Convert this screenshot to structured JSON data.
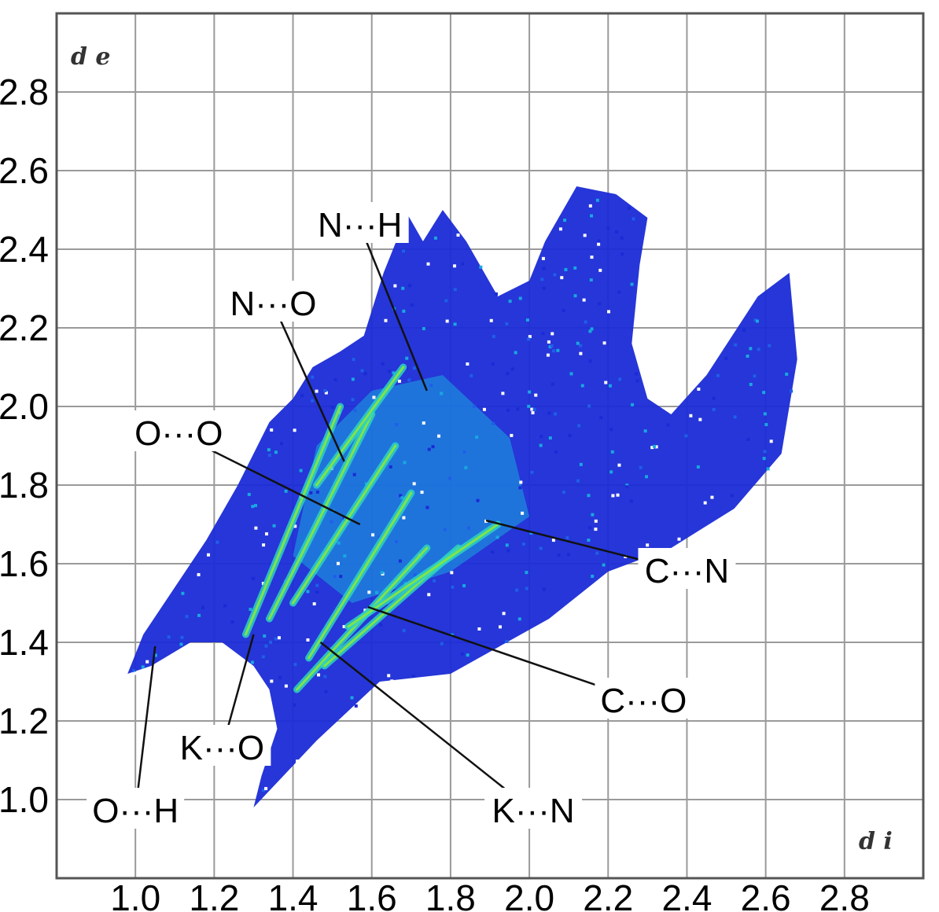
{
  "chart_data": {
    "type": "scatter",
    "title": "",
    "xlabel": "d i",
    "ylabel": "d e",
    "xlim": [
      0.8,
      3.0
    ],
    "ylim": [
      0.8,
      3.0
    ],
    "grid": true,
    "x_ticks": [
      "1.0",
      "1.2",
      "1.4",
      "1.6",
      "1.8",
      "2.0",
      "2.2",
      "2.4",
      "2.6",
      "2.8"
    ],
    "y_ticks": [
      "1.0",
      "1.2",
      "1.4",
      "1.6",
      "1.8",
      "2.0",
      "2.2",
      "2.4",
      "2.6",
      "2.8"
    ],
    "colormap": [
      "#1a2bd6",
      "#1f5fe8",
      "#19a7e0",
      "#2fd3c0",
      "#7fe44a"
    ],
    "point_color": "#1a2bd6",
    "fingerprint_outline": [
      [
        1.3,
        0.98
      ],
      [
        1.46,
        1.15
      ],
      [
        1.62,
        1.3
      ],
      [
        1.8,
        1.32
      ],
      [
        2.05,
        1.46
      ],
      [
        2.2,
        1.58
      ],
      [
        2.36,
        1.64
      ],
      [
        2.52,
        1.74
      ],
      [
        2.64,
        1.88
      ],
      [
        2.68,
        2.12
      ],
      [
        2.66,
        2.34
      ],
      [
        2.58,
        2.28
      ],
      [
        2.45,
        2.08
      ],
      [
        2.36,
        1.98
      ],
      [
        2.3,
        2.02
      ],
      [
        2.26,
        2.16
      ],
      [
        2.28,
        2.36
      ],
      [
        2.3,
        2.48
      ],
      [
        2.22,
        2.54
      ],
      [
        2.12,
        2.56
      ],
      [
        2.04,
        2.42
      ],
      [
        2.0,
        2.32
      ],
      [
        1.92,
        2.28
      ],
      [
        1.84,
        2.42
      ],
      [
        1.78,
        2.5
      ],
      [
        1.73,
        2.42
      ],
      [
        1.69,
        2.49
      ],
      [
        1.63,
        2.34
      ],
      [
        1.58,
        2.18
      ],
      [
        1.52,
        2.14
      ],
      [
        1.45,
        2.1
      ],
      [
        1.4,
        2.02
      ],
      [
        1.34,
        1.96
      ],
      [
        1.26,
        1.8
      ],
      [
        1.18,
        1.66
      ],
      [
        1.1,
        1.54
      ],
      [
        1.02,
        1.42
      ],
      [
        0.98,
        1.32
      ],
      [
        1.04,
        1.34
      ],
      [
        1.14,
        1.4
      ],
      [
        1.22,
        1.4
      ],
      [
        1.3,
        1.34
      ],
      [
        1.34,
        1.28
      ],
      [
        1.36,
        1.18
      ],
      [
        1.32,
        1.06
      ]
    ],
    "spikes": [
      {
        "x": [
          1.28,
          1.52
        ],
        "y": [
          1.42,
          2.0
        ]
      },
      {
        "x": [
          1.34,
          1.6
        ],
        "y": [
          1.46,
          1.98
        ]
      },
      {
        "x": [
          1.4,
          1.66
        ],
        "y": [
          1.5,
          1.9
        ]
      },
      {
        "x": [
          1.44,
          1.7
        ],
        "y": [
          1.36,
          1.78
        ]
      },
      {
        "x": [
          1.41,
          1.74
        ],
        "y": [
          1.28,
          1.64
        ]
      },
      {
        "x": [
          1.48,
          1.82
        ],
        "y": [
          1.34,
          1.64
        ]
      },
      {
        "x": [
          1.54,
          1.92
        ],
        "y": [
          1.44,
          1.7
        ]
      },
      {
        "x": [
          1.46,
          1.68
        ],
        "y": [
          1.8,
          2.1
        ]
      }
    ],
    "annotations": [
      {
        "text": "N···H",
        "target": [
          1.74,
          2.04
        ],
        "label_pos": [
          1.57,
          2.46
        ]
      },
      {
        "text": "N···O",
        "target": [
          1.53,
          1.86
        ],
        "label_pos": [
          1.35,
          2.26
        ]
      },
      {
        "text": "O···O",
        "target": [
          1.57,
          1.7
        ],
        "label_pos": [
          1.11,
          1.93
        ]
      },
      {
        "text": "C···N",
        "target": [
          1.89,
          1.71
        ],
        "label_pos": [
          2.4,
          1.58
        ]
      },
      {
        "text": "C···O",
        "target": [
          1.59,
          1.49
        ],
        "label_pos": [
          2.29,
          1.25
        ]
      },
      {
        "text": "K···O",
        "target": [
          1.3,
          1.42
        ],
        "label_pos": [
          1.22,
          1.13
        ]
      },
      {
        "text": "K···N",
        "target": [
          1.47,
          1.4
        ],
        "label_pos": [
          2.01,
          0.97
        ]
      },
      {
        "text": "O···H",
        "target": [
          1.05,
          1.39
        ],
        "label_pos": [
          1.0,
          0.97
        ]
      }
    ]
  }
}
